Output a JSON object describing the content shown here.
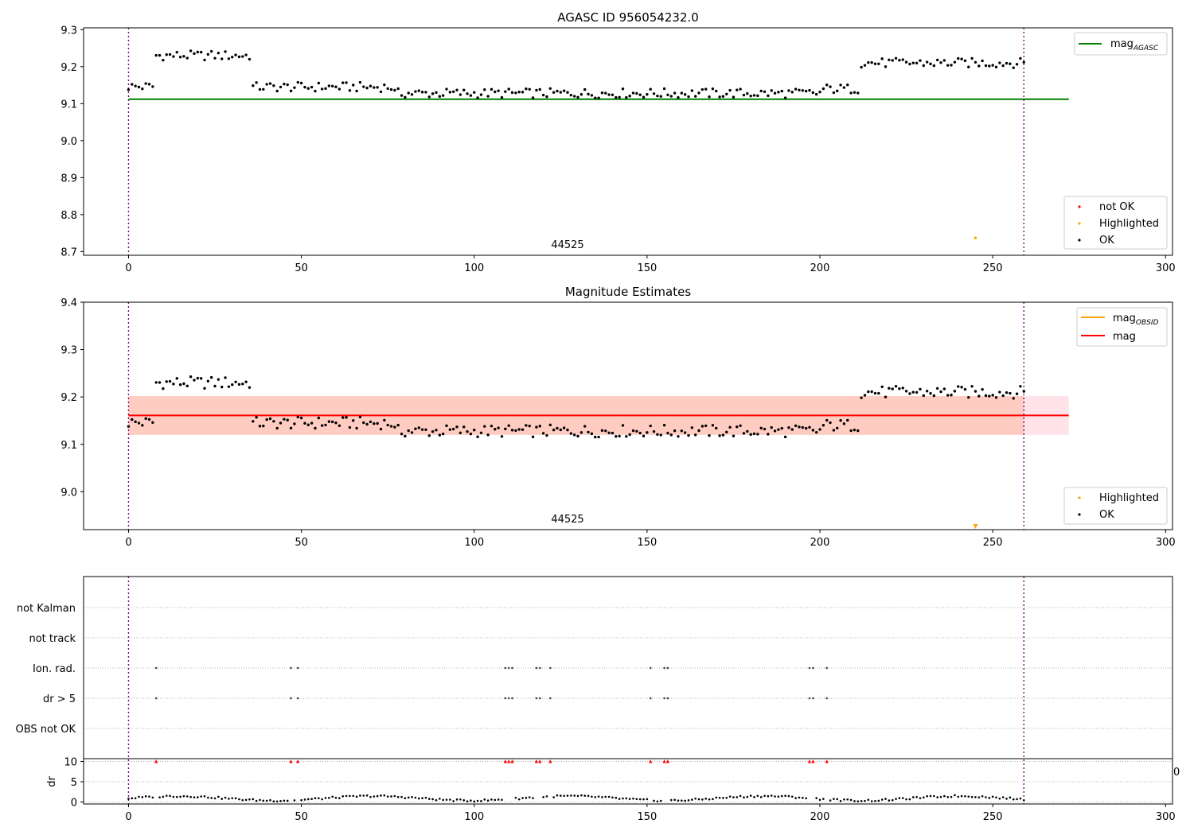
{
  "chart_data": [
    {
      "type": "scatter",
      "title": "AGASC ID 956054232.0",
      "xlabel": "",
      "ylabel": "",
      "xlim": [
        -13,
        302
      ],
      "ylim": [
        8.69,
        9.305
      ],
      "xticks": [
        0,
        50,
        100,
        150,
        200,
        250,
        300
      ],
      "yticks": [
        8.7,
        8.8,
        8.9,
        9.0,
        9.1,
        9.2,
        9.3
      ],
      "obsid_label": "44525",
      "obsid_label_x": 127,
      "obs_bounds": [
        0,
        259
      ],
      "hlines": [
        {
          "name": "mag",
          "sub": "AGASC",
          "y": 9.112,
          "x": [
            0,
            272
          ],
          "color": "#008000"
        }
      ],
      "legend_lines": [
        {
          "name": "mag",
          "sub": "AGASC",
          "color": "#008000"
        }
      ],
      "legend_points": [
        {
          "name": "not OK",
          "color": "#ff0000"
        },
        {
          "name": "Highlighted",
          "color": "#ffa500"
        },
        {
          "name": "OK",
          "color": "#000000"
        }
      ],
      "highlighted": [
        {
          "x": 245,
          "y": 8.737
        }
      ],
      "legend_placement": [
        "top-right",
        "lower-right"
      ]
    },
    {
      "type": "scatter",
      "title": "Magnitude Estimates",
      "xlabel": "",
      "ylabel": "",
      "xlim": [
        -13,
        302
      ],
      "ylim": [
        8.92,
        9.4
      ],
      "xticks": [
        0,
        50,
        100,
        150,
        200,
        250,
        300
      ],
      "yticks": [
        9.0,
        9.1,
        9.2,
        9.3,
        9.4
      ],
      "obsid_label": "44525",
      "obsid_label_x": 127,
      "obs_bounds": [
        0,
        259
      ],
      "hlines": [
        {
          "name": "mag",
          "y": 9.161,
          "x": [
            0,
            272
          ],
          "color": "#ff0000"
        }
      ],
      "bands": [
        {
          "y": [
            9.12,
            9.202
          ],
          "x": [
            0,
            272
          ],
          "color": "#ffc0cb",
          "opacity": 0.45
        },
        {
          "y": [
            9.12,
            9.202
          ],
          "x": [
            0,
            259
          ],
          "color": "#ffa07a",
          "opacity": 0.35
        }
      ],
      "legend_lines": [
        {
          "name": "mag",
          "sub": "OBSID",
          "color": "#ffa500"
        },
        {
          "name": "mag",
          "color": "#ff0000"
        }
      ],
      "legend_points": [
        {
          "name": "Highlighted",
          "color": "#ffa500"
        },
        {
          "name": "OK",
          "color": "#000000"
        }
      ],
      "highlighted_marker": {
        "x": 245,
        "note": "below axis minimum"
      },
      "legend_placement": [
        "top-right",
        "lower-right"
      ]
    },
    {
      "type": "scatter",
      "title": "",
      "xlim": [
        -13,
        302
      ],
      "xticks": [
        0,
        50,
        100,
        150,
        200,
        250,
        300
      ],
      "flag_rows": [
        "not Kalman",
        "not track",
        "Ion. rad.",
        "dr > 5",
        "OBS not OK"
      ],
      "flag_points": {
        "Ion. rad.": [
          8,
          47,
          49,
          109,
          110,
          111,
          118,
          119,
          122,
          151,
          155,
          156,
          197,
          198,
          202
        ],
        "dr > 5": [
          8,
          47,
          49,
          109,
          110,
          111,
          118,
          119,
          122,
          151,
          155,
          156,
          197,
          198,
          202
        ]
      },
      "dr_ylabel": "dr",
      "dr_yticks": [
        0,
        5,
        10
      ],
      "dr_ylim": [
        -0.5,
        10.5
      ],
      "dr_threshold": 10,
      "dr_outliers_x": [
        8,
        47,
        49,
        109,
        110,
        111,
        118,
        119,
        122,
        151,
        155,
        156,
        197,
        198,
        202
      ],
      "obs_bounds": [
        0,
        259
      ],
      "overflow_label": "0"
    }
  ]
}
